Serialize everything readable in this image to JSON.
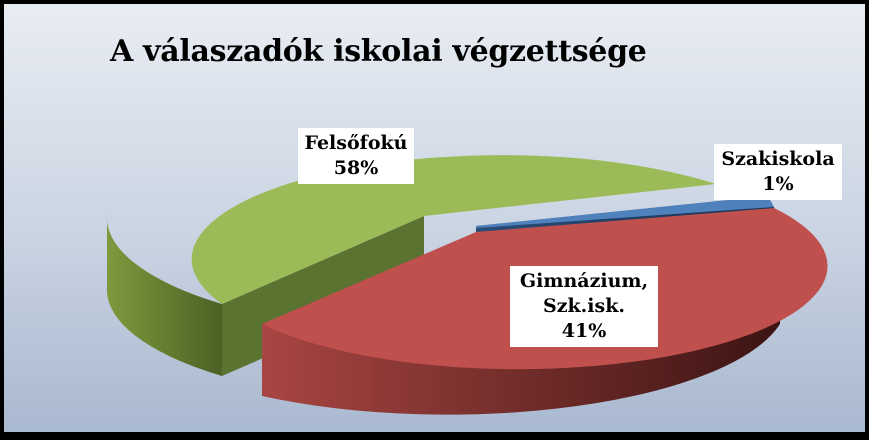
{
  "chart_data": {
    "type": "pie",
    "title": "A válaszadók iskolai végzettsége",
    "slices": [
      {
        "label_lines": [
          "Felsőfokú"
        ],
        "value": 58,
        "value_label": "58%",
        "color": "#9bbb59"
      },
      {
        "label_lines": [
          "Szakiskola"
        ],
        "value": 1,
        "value_label": "1%",
        "color": "#4f81bd"
      },
      {
        "label_lines": [
          "Gimnázium,",
          "Szk.isk."
        ],
        "value": 41,
        "value_label": "41%",
        "color": "#c0504d"
      }
    ]
  }
}
